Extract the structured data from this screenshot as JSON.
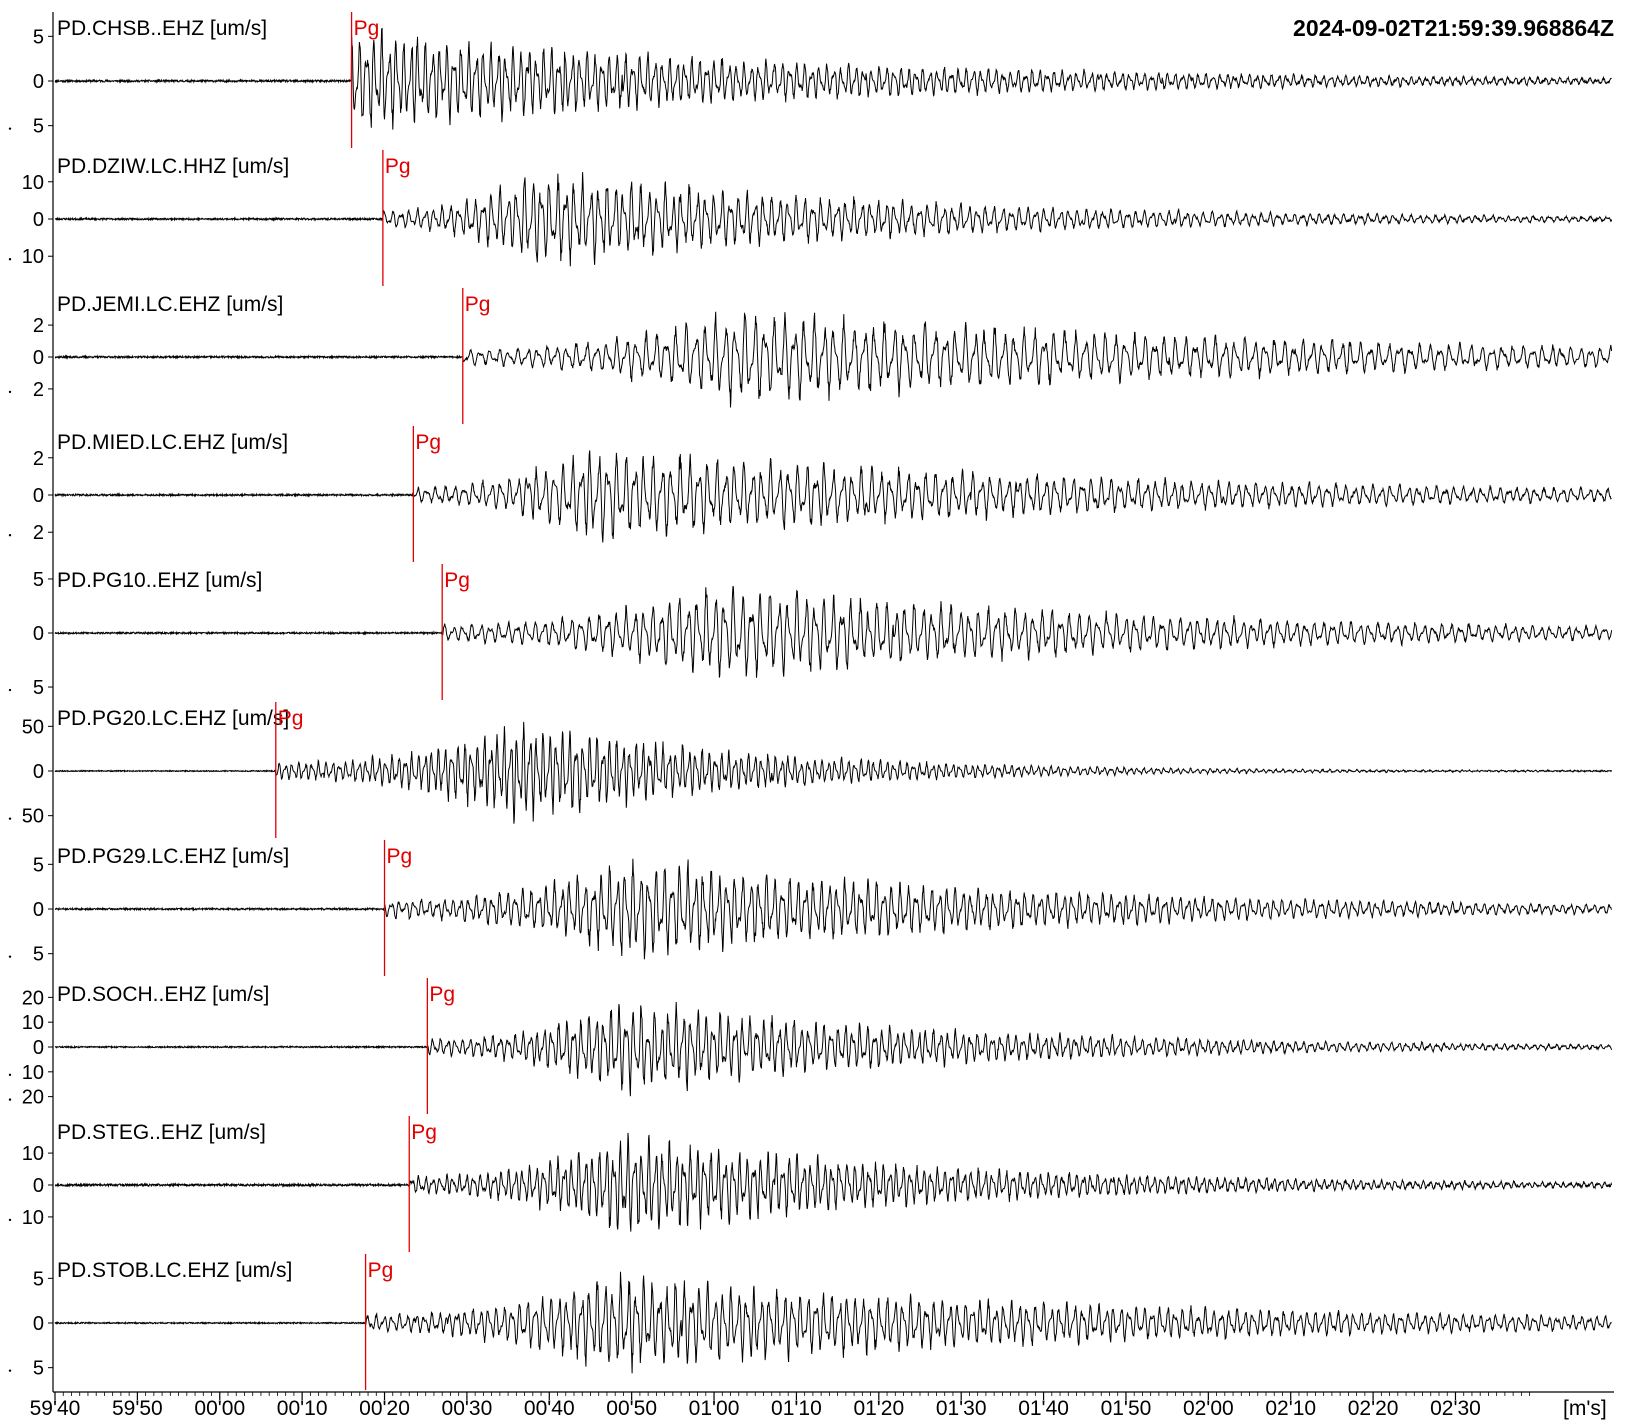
{
  "timestamp": "2024-09-02T21:59:39.968864Z",
  "x_unit_label": "[m's]",
  "pick_color": "#e00000",
  "trace_color": "#000000",
  "chart_data": {
    "type": "line",
    "title": "",
    "xlabel": "[m's]",
    "x_start_time": "21:59:40",
    "x_tick_labels": [
      "59'40",
      "59'50",
      "00'00",
      "00'10",
      "00'20",
      "00'30",
      "00'40",
      "00'50",
      "01'00",
      "01'10",
      "01'20",
      "01'30",
      "01'40",
      "01'50",
      "02'00",
      "02'10",
      "02'20",
      "02'30"
    ],
    "xlim_seconds": [
      0,
      189
    ],
    "grid": false,
    "series": [
      {
        "name": "PD.CHSB..EHZ [um/s]",
        "yticks": [
          5,
          0,
          -5
        ],
        "ytick_labels": [
          "5",
          "0",
          "5"
        ],
        "ylim": [
          -7.5,
          7.5
        ],
        "pick": {
          "phase": "Pg",
          "time_s": 36.0
        },
        "peak_s": 35,
        "amp": 6.8,
        "period_s": 0.9,
        "decay_s": 55,
        "noise": 0.12,
        "seed": 11
      },
      {
        "name": "PD.DZIW.LC.HHZ [um/s]",
        "yticks": [
          10,
          0,
          -10
        ],
        "ytick_labels": [
          "10",
          "0",
          "10"
        ],
        "ylim": [
          -18,
          18
        ],
        "pick": {
          "phase": "Pg",
          "time_s": 39.8
        },
        "peak_s": 58,
        "amp": 15,
        "period_s": 1.0,
        "decay_s": 45,
        "noise": 0.25,
        "seed": 23
      },
      {
        "name": "PD.JEMI.LC.EHZ [um/s]",
        "yticks": [
          2,
          0,
          -2
        ],
        "ytick_labels": [
          "2",
          "0",
          "2"
        ],
        "ylim": [
          -4.2,
          4.2
        ],
        "pick": {
          "phase": "Pg",
          "time_s": 49.5
        },
        "peak_s": 83,
        "amp": 3.4,
        "period_s": 1.2,
        "decay_s": 70,
        "noise": 0.06,
        "seed": 37
      },
      {
        "name": "PD.MIED.LC.EHZ [um/s]",
        "yticks": [
          2,
          0,
          -2
        ],
        "ytick_labels": [
          "2",
          "0",
          "2"
        ],
        "ylim": [
          -3.6,
          3.6
        ],
        "pick": {
          "phase": "Pg",
          "time_s": 43.5
        },
        "peak_s": 65,
        "amp": 2.9,
        "period_s": 1.1,
        "decay_s": 65,
        "noise": 0.05,
        "seed": 41
      },
      {
        "name": "PD.PG10..EHZ [um/s]",
        "yticks": [
          5,
          0,
          -5
        ],
        "ytick_labels": [
          "5",
          "0",
          "5"
        ],
        "ylim": [
          -6.2,
          6.2
        ],
        "pick": {
          "phase": "Pg",
          "time_s": 47.0
        },
        "peak_s": 80,
        "amp": 5.2,
        "period_s": 1.1,
        "decay_s": 55,
        "noise": 0.08,
        "seed": 53
      },
      {
        "name": "PD.PG20.LC.EHZ [um/s]",
        "yticks": [
          50,
          0,
          -50
        ],
        "ytick_labels": [
          "50",
          "0",
          "50"
        ],
        "ylim": [
          -75,
          75
        ],
        "pick": {
          "phase": "Pg",
          "time_s": 26.8
        },
        "peak_s": 57,
        "amp": 65,
        "period_s": 0.8,
        "decay_s": 28,
        "noise": 0.6,
        "seed": 67
      },
      {
        "name": "PD.PG29.LC.EHZ [um/s]",
        "yticks": [
          5,
          0,
          -5
        ],
        "ytick_labels": [
          "5",
          "0",
          "5"
        ],
        "ylim": [
          -7.5,
          7.5
        ],
        "pick": {
          "phase": "Pg",
          "time_s": 40.0
        },
        "peak_s": 70,
        "amp": 6.5,
        "period_s": 0.95,
        "decay_s": 50,
        "noise": 0.1,
        "seed": 71
      },
      {
        "name": "PD.SOCH..EHZ [um/s]",
        "yticks": [
          20,
          10,
          0,
          -10,
          -20
        ],
        "ytick_labels": [
          "20",
          "10",
          "0",
          "10",
          "20"
        ],
        "ylim": [
          -27,
          27
        ],
        "pick": {
          "phase": "Pg",
          "time_s": 45.2
        },
        "peak_s": 69,
        "amp": 22,
        "period_s": 0.9,
        "decay_s": 40,
        "noise": 0.3,
        "seed": 83
      },
      {
        "name": "PD.STEG..EHZ [um/s]",
        "yticks": [
          10,
          0,
          -10
        ],
        "ytick_labels": [
          "10",
          "0",
          "10"
        ],
        "ylim": [
          -21,
          21
        ],
        "pick": {
          "phase": "Pg",
          "time_s": 43.0
        },
        "peak_s": 69,
        "amp": 18,
        "period_s": 0.85,
        "decay_s": 40,
        "noise": 0.35,
        "seed": 97
      },
      {
        "name": "PD.STOB.LC.EHZ [um/s]",
        "yticks": [
          5,
          0,
          -5
        ],
        "ytick_labels": [
          "5",
          "0",
          "5"
        ],
        "ylim": [
          -7.5,
          7.5
        ],
        "pick": {
          "phase": "Pg",
          "time_s": 37.7
        },
        "peak_s": 67,
        "amp": 6.2,
        "period_s": 0.95,
        "decay_s": 65,
        "noise": 0.08,
        "seed": 101
      }
    ]
  }
}
